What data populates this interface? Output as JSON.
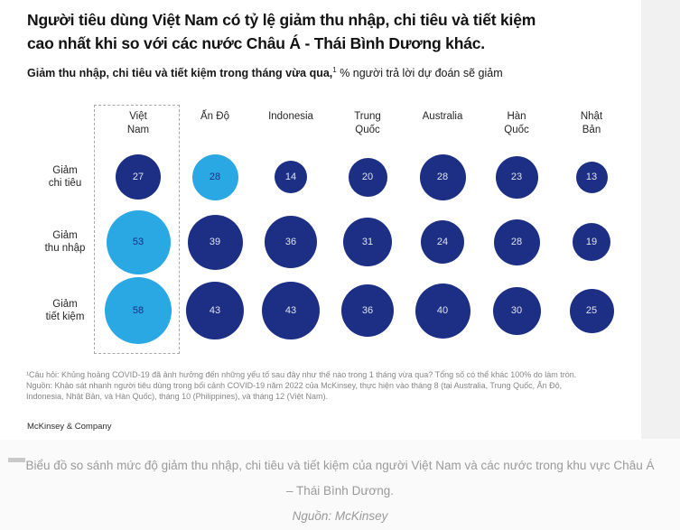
{
  "title": {
    "line1": "Người tiêu dùng Việt Nam có tỷ lệ giảm thu nhập, chi tiêu và tiết kiệm",
    "line2": "cao nhất khi so với các nước Châu Á - Thái Bình Dương khác."
  },
  "subtitle": {
    "bold": "Giảm thu nhập, chi tiêu và tiết kiệm trong tháng vừa qua,",
    "superscript": "1",
    "rest": " % người trả lời dự đoán sẽ giảm"
  },
  "chart_data": {
    "type": "bubble",
    "columns": [
      "Việt\nNam",
      "Ấn Độ",
      "Indonesia",
      "Trung\nQuốc",
      "Australia",
      "Hàn\nQuốc",
      "Nhật\nBản"
    ],
    "rows": [
      "Giảm\nchi tiêu",
      "Giảm\nthu nhập",
      "Giảm\ntiết kiệm"
    ],
    "series": [
      {
        "name": "Giảm chi tiêu",
        "values": [
          27,
          28,
          14,
          20,
          28,
          23,
          13
        ]
      },
      {
        "name": "Giảm thu nhập",
        "values": [
          53,
          39,
          36,
          31,
          24,
          28,
          19
        ]
      },
      {
        "name": "Giảm tiết kiệm",
        "values": [
          58,
          43,
          43,
          36,
          40,
          30,
          25
        ]
      }
    ],
    "highlighted_cells": [
      {
        "row": 0,
        "col": 1
      },
      {
        "row": 1,
        "col": 0
      },
      {
        "row": 2,
        "col": 0
      }
    ],
    "colors": {
      "default_bubble": "#1d2e85",
      "highlight_bubble": "#29a8e3",
      "value_on_default": "#dfe3f0",
      "value_on_highlight": "#1d2e85"
    },
    "unit": "%",
    "size_encoding": "bubble area proportional to value"
  },
  "footnote": {
    "line1": "¹Câu hỏi: Khủng hoảng COVID-19 đã ảnh hưởng đến những yếu tố sau đây như thế nào trong 1 tháng vừa qua? Tổng số có thể khác 100% do làm tròn.",
    "line2": "Nguồn: Khảo sát nhanh người tiêu dùng trong bối cảnh COVID-19 năm 2022 của McKinsey, thực hiện vào tháng 8 (tại Australia, Trung Quốc, Ấn Độ,",
    "line3": "Indonesia, Nhật Bản, và Hàn Quốc), tháng 10 (Philippines), và tháng 12 (Việt Nam)."
  },
  "brand": "McKinsey & Company",
  "caption": {
    "line1": "Biểu đồ so sánh mức độ giảm thu nhập, chi tiêu và tiết kiệm của người Việt Nam và các nước trong khu vực Châu Á",
    "line2": "– Thái Bình Dương.",
    "source": "Nguồn: McKinsey"
  }
}
